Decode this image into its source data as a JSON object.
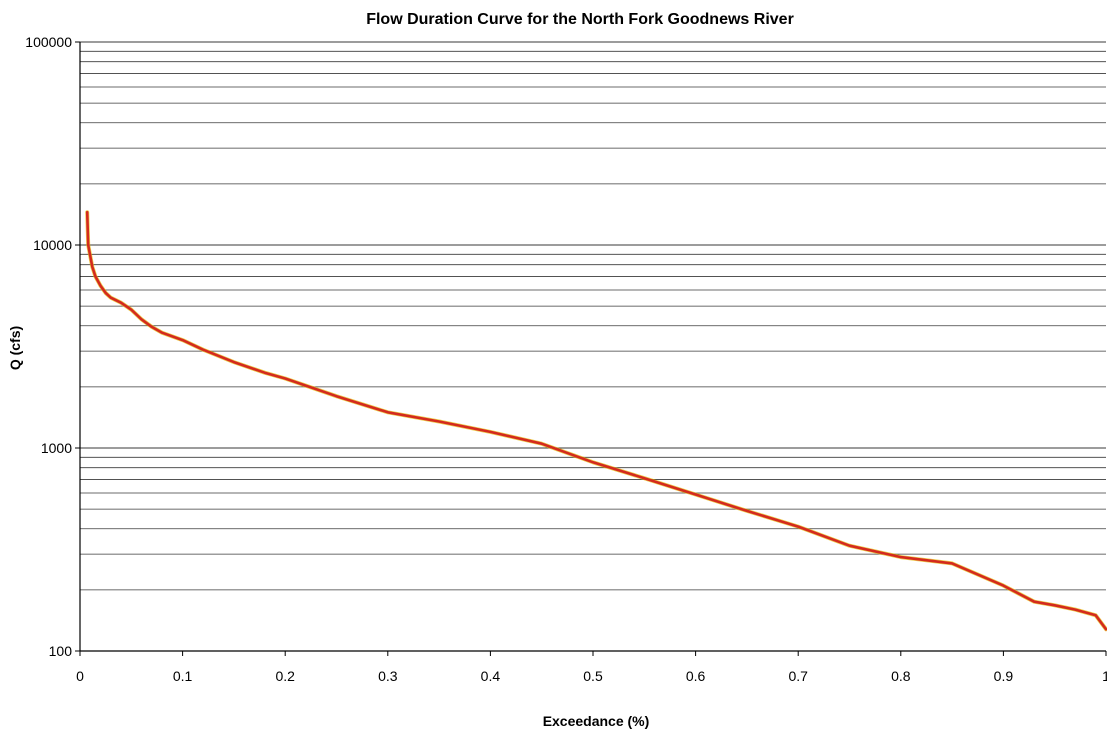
{
  "chart_data": {
    "type": "line",
    "title": "Flow Duration Curve for the North Fork Goodnews River",
    "xlabel": "Exceedance (%)",
    "ylabel": "Q (cfs)",
    "x_scale": "linear",
    "y_scale": "log",
    "xlim": [
      0,
      1
    ],
    "ylim": [
      100,
      100000
    ],
    "x_ticks": [
      "0",
      "0.1",
      "0.2",
      "0.3",
      "0.4",
      "0.5",
      "0.6",
      "0.7",
      "0.8",
      "0.9",
      "1"
    ],
    "y_ticks": [
      "100",
      "1000",
      "10000",
      "100000"
    ],
    "grid": "horizontal minor and major lines",
    "legend": "none",
    "series": [
      {
        "color": "#d42a1e",
        "x": [
          0.007,
          0.008,
          0.01,
          0.012,
          0.015,
          0.02,
          0.025,
          0.03,
          0.04,
          0.05,
          0.06,
          0.07,
          0.08,
          0.1,
          0.12,
          0.15,
          0.18,
          0.2,
          0.25,
          0.3,
          0.35,
          0.4,
          0.45,
          0.5,
          0.55,
          0.6,
          0.65,
          0.7,
          0.75,
          0.8,
          0.85,
          0.9,
          0.93,
          0.95,
          0.97,
          0.99,
          1.0
        ],
        "y": [
          14500,
          10000,
          8800,
          7800,
          7000,
          6300,
          5800,
          5500,
          5200,
          4800,
          4300,
          3950,
          3700,
          3400,
          3050,
          2650,
          2350,
          2200,
          1800,
          1500,
          1350,
          1200,
          1050,
          850,
          710,
          590,
          490,
          410,
          330,
          290,
          270,
          210,
          175,
          168,
          160,
          150,
          128
        ]
      }
    ]
  }
}
